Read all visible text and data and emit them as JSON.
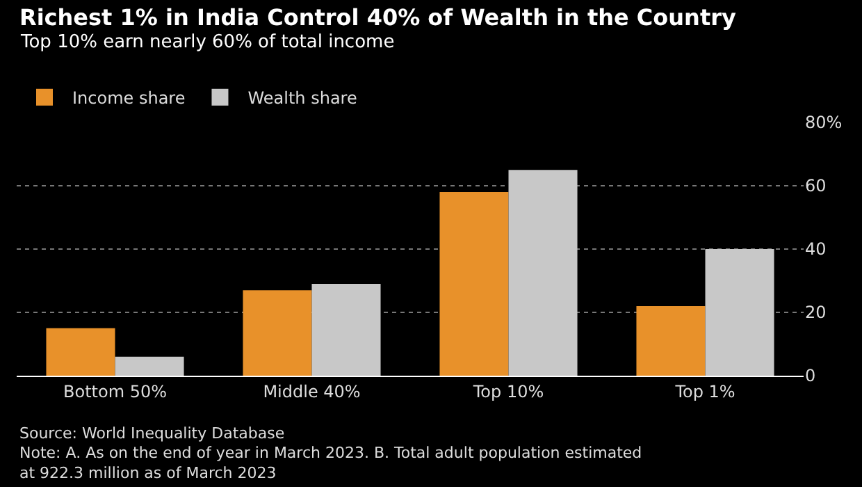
{
  "chart_data": {
    "type": "bar",
    "title": "Richest 1% in India Control 40% of Wealth in the Country",
    "subtitle": "Top 10% earn nearly 60% of total income",
    "categories": [
      "Bottom 50%",
      "Middle 40%",
      "Top 10%",
      "Top 1%"
    ],
    "series": [
      {
        "name": "Income share",
        "color": "#e8912a",
        "values": [
          15,
          27,
          58,
          22
        ]
      },
      {
        "name": "Wealth share",
        "color": "#c8c8c8",
        "values": [
          6,
          29,
          65,
          40
        ]
      }
    ],
    "ylim": [
      0,
      80
    ],
    "yticks": [
      0,
      20,
      40,
      60,
      {
        "value": 80,
        "label": "80%"
      }
    ],
    "grid": "y",
    "legend": "top left",
    "annotations": [
      "Source: World Inequality Database",
      "Note: A. As on the end of year in March 2023. B. Total adult population estimated\nat 922.3 million as of March 2023"
    ]
  }
}
